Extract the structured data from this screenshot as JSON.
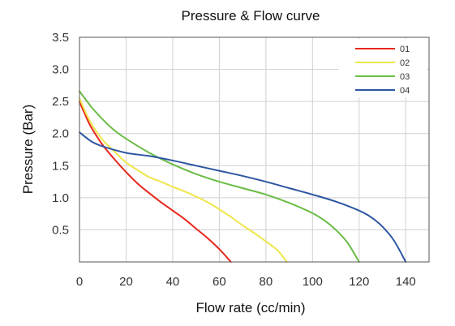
{
  "chart_data": {
    "type": "line",
    "title": "Pressure & Flow curve",
    "xlabel": "Flow rate (cc/min)",
    "ylabel": "Pressure (Bar)",
    "xlim": [
      0,
      150
    ],
    "ylim": [
      0,
      3.5
    ],
    "x_ticks": [
      "0",
      "20",
      "40",
      "60",
      "80",
      "100",
      "120",
      "140"
    ],
    "x_tick_values": [
      0,
      20,
      40,
      60,
      80,
      100,
      120,
      140
    ],
    "y_ticks": [
      "0.5",
      "1.0",
      "1.5",
      "2.0",
      "2.5",
      "3.0",
      "3.5"
    ],
    "y_tick_values": [
      0.5,
      1.0,
      1.5,
      2.0,
      2.5,
      3.0,
      3.5
    ],
    "grid": true,
    "legend_position": "top-right",
    "series": [
      {
        "name": "01",
        "color": "#e8261c",
        "points": [
          [
            0,
            2.5
          ],
          [
            2,
            2.33
          ],
          [
            5,
            2.1
          ],
          [
            10,
            1.82
          ],
          [
            15,
            1.6
          ],
          [
            20,
            1.4
          ],
          [
            25,
            1.22
          ],
          [
            30,
            1.07
          ],
          [
            35,
            0.93
          ],
          [
            40,
            0.8
          ],
          [
            45,
            0.67
          ],
          [
            50,
            0.52
          ],
          [
            55,
            0.37
          ],
          [
            60,
            0.2
          ],
          [
            65,
            0.0
          ]
        ]
      },
      {
        "name": "02",
        "color": "#eee64a",
        "points": [
          [
            0,
            2.55
          ],
          [
            3,
            2.3
          ],
          [
            6,
            2.1
          ],
          [
            10,
            1.9
          ],
          [
            15,
            1.72
          ],
          [
            20,
            1.55
          ],
          [
            25,
            1.43
          ],
          [
            30,
            1.32
          ],
          [
            35,
            1.25
          ],
          [
            40,
            1.17
          ],
          [
            45,
            1.1
          ],
          [
            50,
            1.02
          ],
          [
            55,
            0.93
          ],
          [
            60,
            0.82
          ],
          [
            65,
            0.7
          ],
          [
            70,
            0.57
          ],
          [
            75,
            0.45
          ],
          [
            80,
            0.32
          ],
          [
            85,
            0.18
          ],
          [
            89,
            0.0
          ]
        ]
      },
      {
        "name": "03",
        "color": "#6abc45",
        "points": [
          [
            0,
            2.66
          ],
          [
            5,
            2.42
          ],
          [
            10,
            2.22
          ],
          [
            15,
            2.05
          ],
          [
            20,
            1.92
          ],
          [
            30,
            1.7
          ],
          [
            40,
            1.52
          ],
          [
            50,
            1.37
          ],
          [
            60,
            1.25
          ],
          [
            70,
            1.15
          ],
          [
            80,
            1.05
          ],
          [
            90,
            0.92
          ],
          [
            100,
            0.76
          ],
          [
            105,
            0.65
          ],
          [
            110,
            0.5
          ],
          [
            115,
            0.3
          ],
          [
            120,
            0.0
          ]
        ]
      },
      {
        "name": "04",
        "color": "#2d56a1",
        "points": [
          [
            0,
            2.02
          ],
          [
            5,
            1.88
          ],
          [
            10,
            1.8
          ],
          [
            20,
            1.7
          ],
          [
            30,
            1.65
          ],
          [
            40,
            1.58
          ],
          [
            50,
            1.5
          ],
          [
            60,
            1.42
          ],
          [
            70,
            1.34
          ],
          [
            80,
            1.25
          ],
          [
            90,
            1.15
          ],
          [
            100,
            1.05
          ],
          [
            110,
            0.94
          ],
          [
            120,
            0.8
          ],
          [
            125,
            0.7
          ],
          [
            130,
            0.55
          ],
          [
            135,
            0.33
          ],
          [
            140,
            0.0
          ]
        ]
      }
    ]
  }
}
